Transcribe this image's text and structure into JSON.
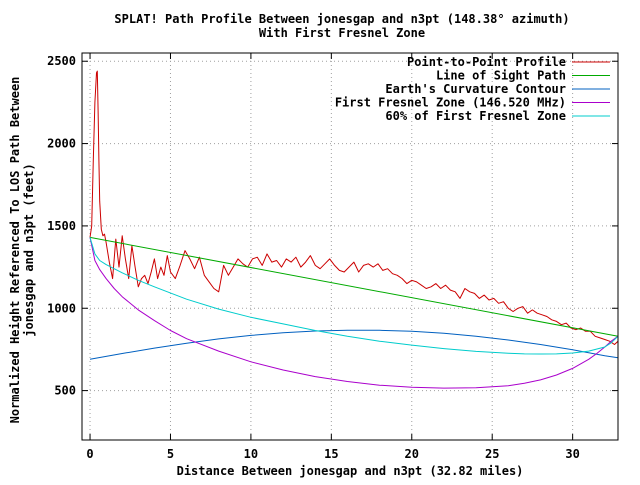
{
  "chart_data": {
    "type": "line",
    "title": "SPLAT! Path Profile Between jonesgap and n3pt (148.38° azimuth)",
    "subtitle": "With First Fresnel Zone",
    "xlabel": "Distance Between jonesgap and n3pt (32.82 miles)",
    "ylabel_line1": "Normalized Height Referenced To LOS Path Between",
    "ylabel_line2": "jonesgap and n3pt (feet)",
    "xlim": [
      -0.5,
      32.82
    ],
    "ylim": [
      200,
      2550
    ],
    "x_ticks": [
      0,
      5,
      10,
      15,
      20,
      25,
      30
    ],
    "x_tick_labels": [
      "0",
      "5",
      "10",
      "15",
      "20",
      "25",
      "30"
    ],
    "y_ticks": [
      500,
      1000,
      1500,
      2000,
      2500
    ],
    "y_tick_labels": [
      "500",
      "1000",
      "1500",
      "2000",
      "2500"
    ],
    "grid": true,
    "legend_position": "top-right",
    "series": [
      {
        "name": "Point-to-Point Profile",
        "color": "#cc0000",
        "x": [
          0,
          0.1,
          0.2,
          0.3,
          0.4,
          0.45,
          0.5,
          0.55,
          0.6,
          0.7,
          0.8,
          0.9,
          1.0,
          1.2,
          1.4,
          1.6,
          1.8,
          2.0,
          2.2,
          2.4,
          2.6,
          2.8,
          3.0,
          3.2,
          3.4,
          3.6,
          3.8,
          4.0,
          4.2,
          4.4,
          4.6,
          4.8,
          5.0,
          5.3,
          5.6,
          5.9,
          6.2,
          6.5,
          6.8,
          7.1,
          7.4,
          7.7,
          8.0,
          8.3,
          8.6,
          8.9,
          9.2,
          9.5,
          9.8,
          10.1,
          10.4,
          10.7,
          11.0,
          11.3,
          11.6,
          11.9,
          12.2,
          12.5,
          12.8,
          13.1,
          13.4,
          13.7,
          14.0,
          14.3,
          14.6,
          14.9,
          15.2,
          15.5,
          15.8,
          16.1,
          16.4,
          16.7,
          17.0,
          17.3,
          17.6,
          17.9,
          18.2,
          18.5,
          18.8,
          19.1,
          19.4,
          19.7,
          20.0,
          20.3,
          20.6,
          20.9,
          21.2,
          21.5,
          21.8,
          22.1,
          22.4,
          22.7,
          23.0,
          23.3,
          23.6,
          23.9,
          24.2,
          24.5,
          24.8,
          25.1,
          25.4,
          25.7,
          26.0,
          26.3,
          26.6,
          26.9,
          27.2,
          27.5,
          27.8,
          28.1,
          28.4,
          28.7,
          29.0,
          29.3,
          29.6,
          29.9,
          30.2,
          30.5,
          30.8,
          31.1,
          31.4,
          31.7,
          32.0,
          32.3,
          32.6,
          32.82
        ],
        "values": [
          1430,
          1500,
          1900,
          2250,
          2430,
          2440,
          2200,
          1900,
          1650,
          1480,
          1440,
          1450,
          1400,
          1280,
          1180,
          1420,
          1250,
          1440,
          1300,
          1180,
          1380,
          1250,
          1130,
          1180,
          1200,
          1150,
          1220,
          1300,
          1180,
          1250,
          1200,
          1320,
          1220,
          1180,
          1260,
          1350,
          1300,
          1240,
          1310,
          1200,
          1160,
          1120,
          1100,
          1260,
          1200,
          1250,
          1300,
          1270,
          1250,
          1300,
          1310,
          1260,
          1330,
          1280,
          1290,
          1250,
          1300,
          1280,
          1310,
          1250,
          1280,
          1320,
          1260,
          1240,
          1270,
          1300,
          1260,
          1230,
          1220,
          1250,
          1280,
          1220,
          1260,
          1270,
          1250,
          1270,
          1230,
          1240,
          1210,
          1200,
          1180,
          1150,
          1170,
          1160,
          1140,
          1120,
          1130,
          1150,
          1120,
          1140,
          1110,
          1100,
          1060,
          1120,
          1100,
          1090,
          1060,
          1080,
          1050,
          1060,
          1030,
          1040,
          1000,
          980,
          1000,
          1010,
          970,
          990,
          970,
          960,
          950,
          930,
          920,
          900,
          910,
          880,
          870,
          880,
          860,
          860,
          830,
          820,
          810,
          800,
          780,
          800
        ]
      },
      {
        "name": "Line of Sight Path",
        "color": "#00aa00",
        "x": [
          0,
          32.82
        ],
        "values": [
          1430,
          830
        ]
      },
      {
        "name": "Earth's Curvature Contour",
        "color": "#0060c0",
        "x": [
          0,
          2,
          4,
          6,
          8,
          10,
          12,
          14,
          16,
          18,
          20,
          22,
          24,
          26,
          28,
          30,
          32,
          32.82
        ],
        "values": [
          690,
          725,
          758,
          788,
          814,
          835,
          851,
          862,
          867,
          866,
          860,
          848,
          830,
          807,
          780,
          748,
          712,
          700
        ]
      },
      {
        "name": "First Fresnel Zone (146.520 MHz)",
        "color": "#aa00cc",
        "x": [
          0,
          0.3,
          0.6,
          1,
          1.5,
          2,
          3,
          4,
          5,
          6,
          8,
          10,
          12,
          14,
          16,
          18,
          20,
          22,
          24,
          26,
          27,
          28,
          29,
          30,
          31,
          31.5,
          32,
          32.4,
          32.82
        ],
        "values": [
          1430,
          1290,
          1235,
          1180,
          1120,
          1070,
          990,
          925,
          865,
          815,
          740,
          675,
          625,
          585,
          555,
          533,
          520,
          515,
          517,
          530,
          545,
          565,
          595,
          635,
          690,
          725,
          765,
          800,
          830
        ]
      },
      {
        "name": "60% of First Fresnel Zone",
        "color": "#00cccc",
        "x": [
          0,
          0.3,
          0.6,
          1,
          2,
          3,
          4,
          6,
          8,
          10,
          12,
          14,
          16,
          18,
          20,
          22,
          24,
          26,
          27,
          28,
          29,
          30,
          31,
          32,
          32.4,
          32.82
        ],
        "values": [
          1430,
          1330,
          1290,
          1265,
          1215,
          1170,
          1130,
          1055,
          995,
          945,
          905,
          865,
          830,
          800,
          776,
          755,
          738,
          727,
          723,
          722,
          723,
          728,
          740,
          765,
          790,
          830
        ]
      }
    ]
  }
}
